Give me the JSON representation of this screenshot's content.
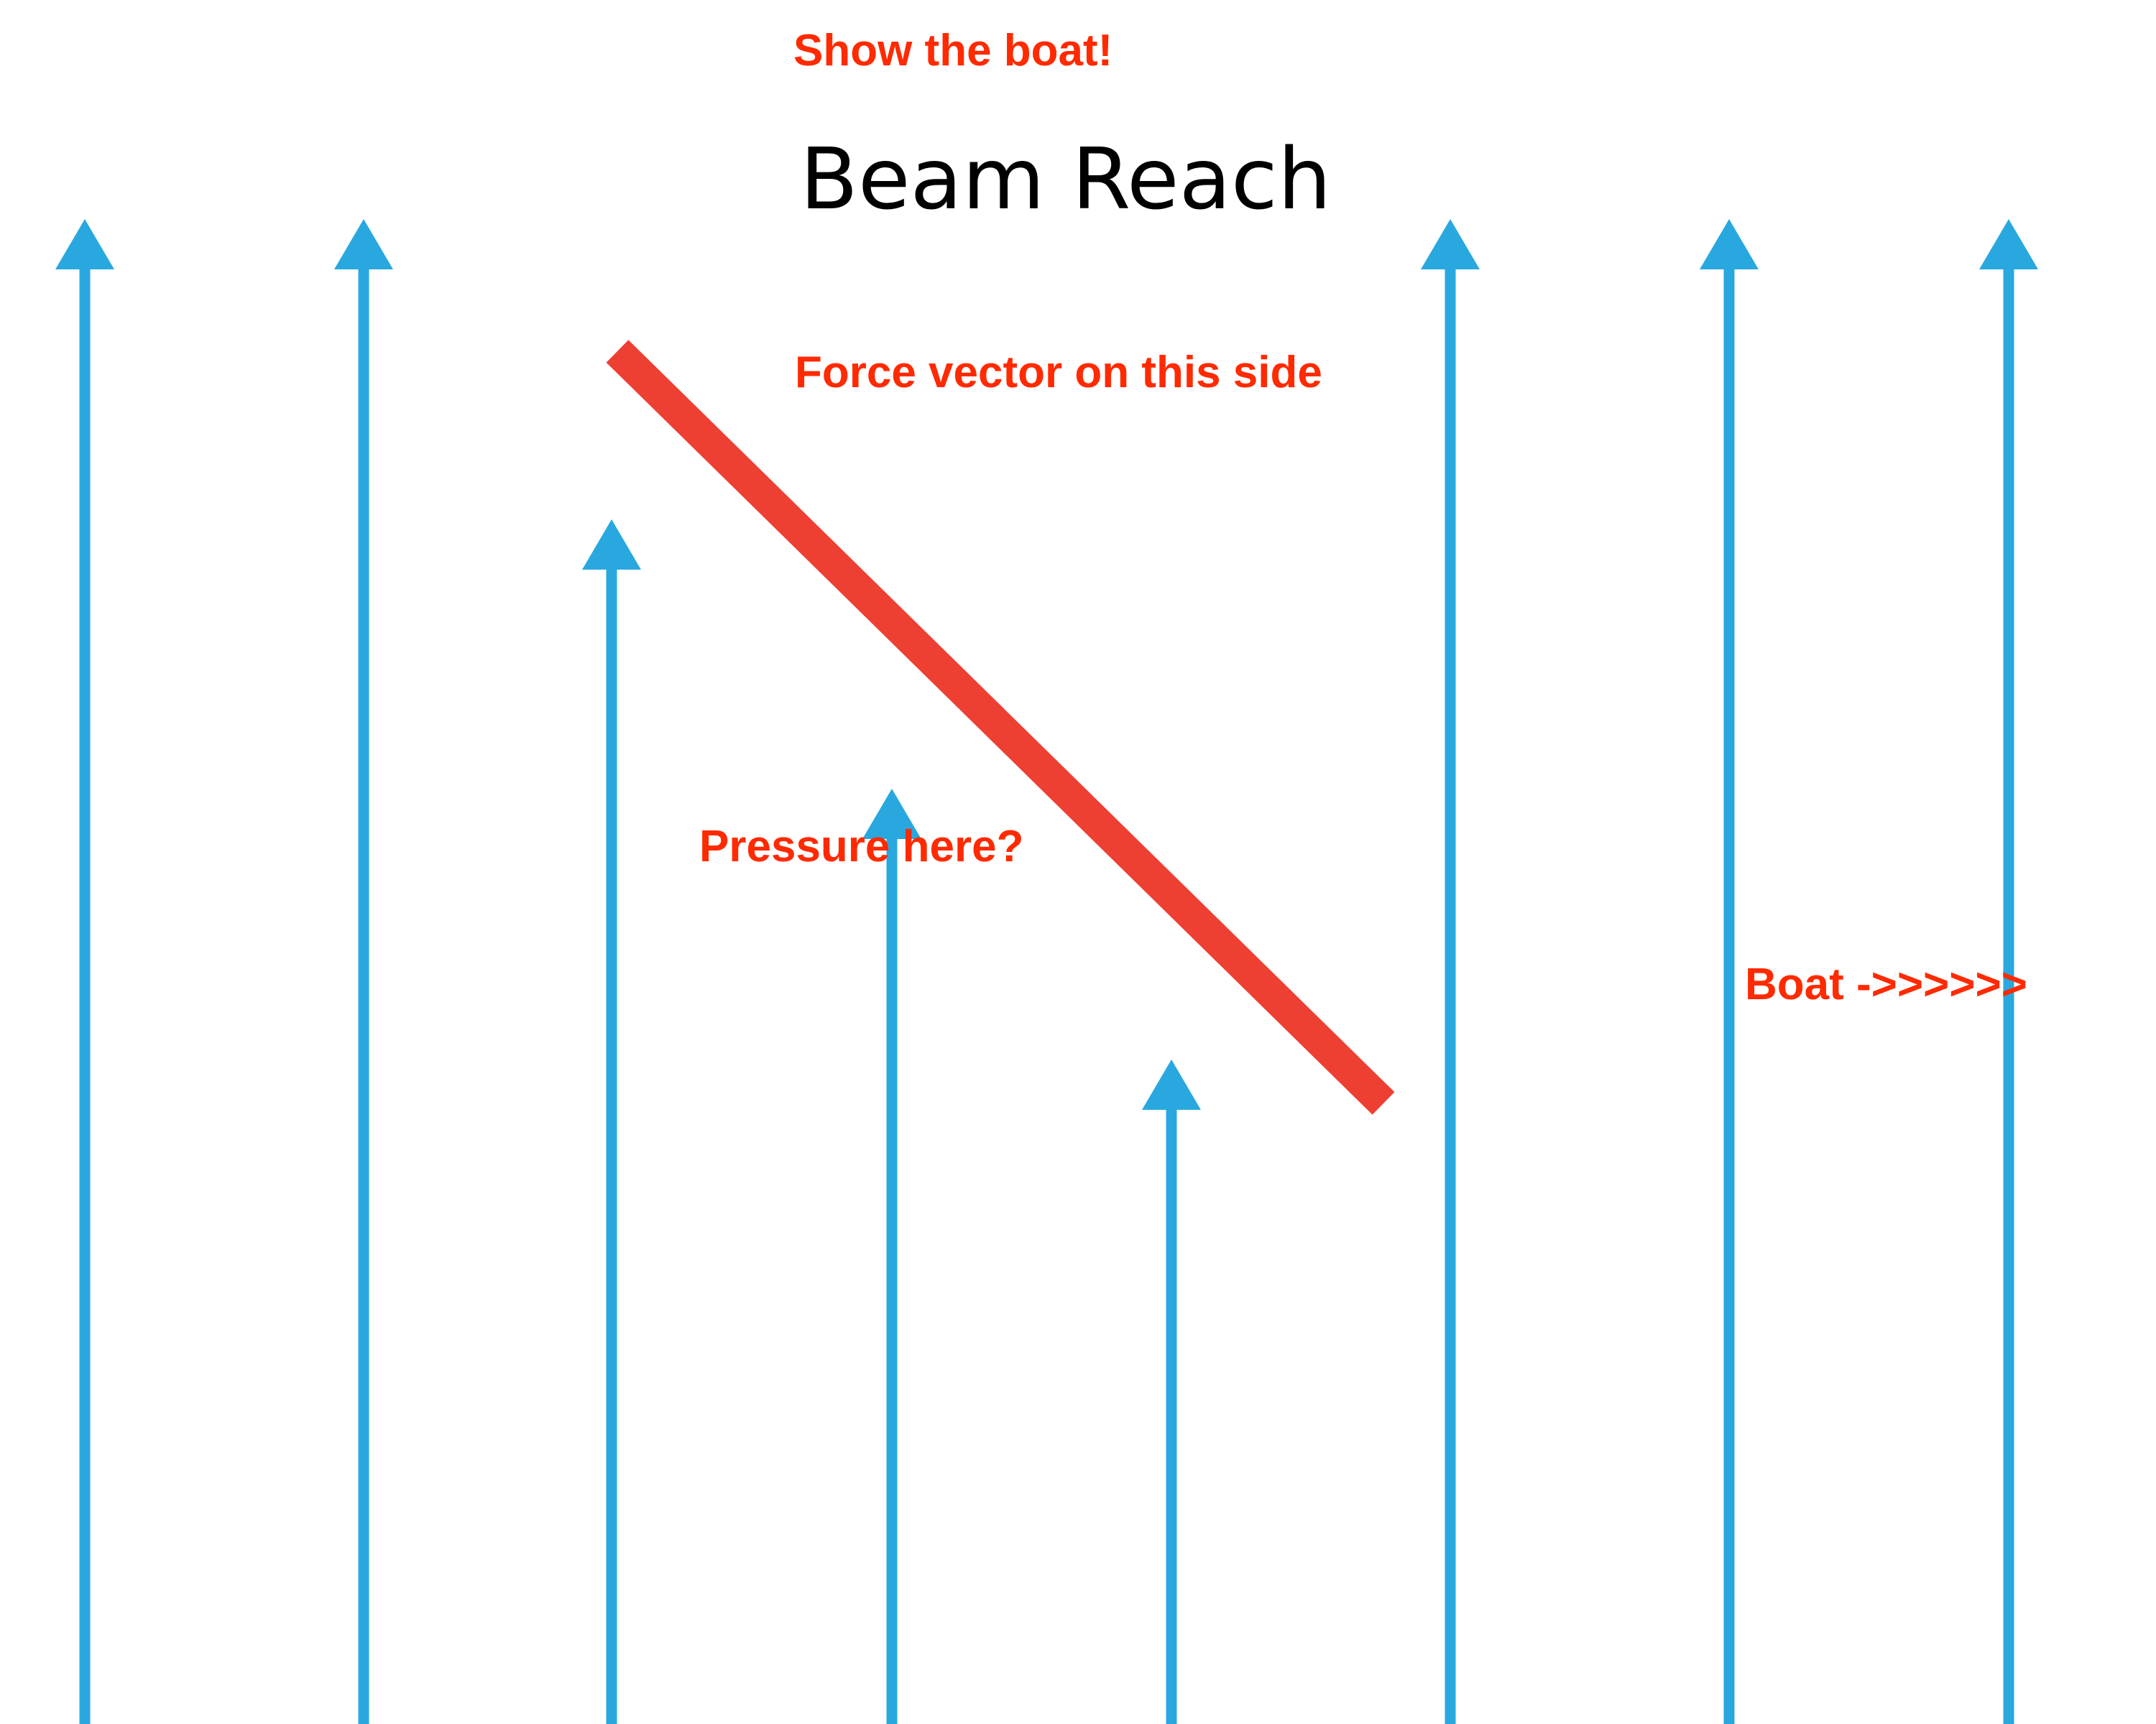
{
  "title": "Beam Reach",
  "annotations": {
    "show_boat": "Show the boat!",
    "force_vector": "Force vector on this side",
    "pressure": "Pressure here?",
    "boat": "Boat ->>>>>>"
  },
  "colors": {
    "wind_arrow": "#29a8df",
    "sail": "#ee3f33",
    "annotation_text": "#ff2a00",
    "title_text": "#000000",
    "background": "#ffffff"
  },
  "wind_arrows": {
    "count": 8,
    "direction": "up"
  },
  "sail": {
    "shape": "diagonal-bar",
    "orientation": "top-left-to-bottom-right"
  }
}
